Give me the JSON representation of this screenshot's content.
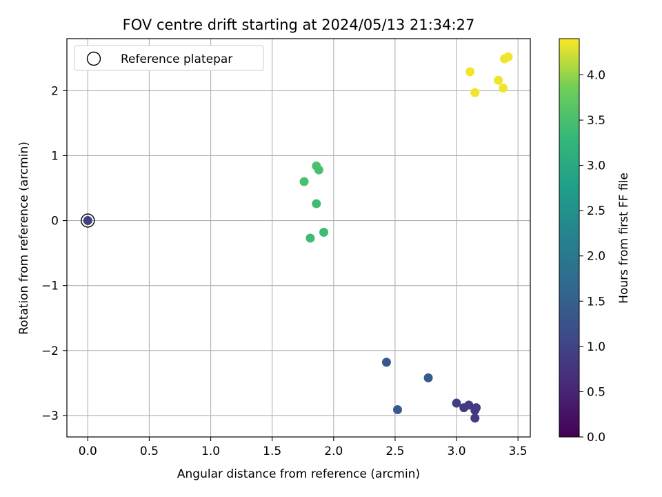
{
  "chart_data": {
    "type": "scatter",
    "title": "FOV centre drift starting at 2024/05/13 21:34:27",
    "xlabel": "Angular distance from reference (arcmin)",
    "ylabel": "Rotation from reference (arcmin)",
    "xlim": [
      -0.17,
      3.6
    ],
    "ylim": [
      -3.33,
      2.8
    ],
    "x_ticks": [
      0.0,
      0.5,
      1.0,
      1.5,
      2.0,
      2.5,
      3.0,
      3.5
    ],
    "x_tick_labels": [
      "0.0",
      "0.5",
      "1.0",
      "1.5",
      "2.0",
      "2.5",
      "3.0",
      "3.5"
    ],
    "y_ticks": [
      -3,
      -2,
      -1,
      0,
      1,
      2
    ],
    "y_tick_labels": [
      "−3",
      "−2",
      "−1",
      "0",
      "1",
      "2"
    ],
    "grid": true,
    "legend": {
      "placement": "top-left",
      "entries": [
        {
          "label": "Reference platepar",
          "marker": "open-circle"
        }
      ]
    },
    "colorbar": {
      "label": "Hours from first FF file",
      "range": [
        0.0,
        4.4
      ],
      "colormap": "viridis",
      "ticks": [
        0.0,
        0.5,
        1.0,
        1.5,
        2.0,
        2.5,
        3.0,
        3.5,
        4.0
      ],
      "tick_labels": [
        "0.0",
        "0.5",
        "1.0",
        "1.5",
        "2.0",
        "2.5",
        "3.0",
        "3.5",
        "4.0"
      ]
    },
    "reference_point": {
      "x": 0.0,
      "y": 0.0
    },
    "points": [
      {
        "x": 0.0,
        "y": 0.0,
        "hours": 0.9
      },
      {
        "x": 3.15,
        "y": -3.04,
        "hours": 0.85
      },
      {
        "x": 3.16,
        "y": -2.88,
        "hours": 0.85
      },
      {
        "x": 3.15,
        "y": -2.92,
        "hours": 0.85
      },
      {
        "x": 3.1,
        "y": -2.84,
        "hours": 0.85
      },
      {
        "x": 3.06,
        "y": -2.88,
        "hours": 0.85
      },
      {
        "x": 3.0,
        "y": -2.81,
        "hours": 0.9
      },
      {
        "x": 2.52,
        "y": -2.91,
        "hours": 1.4
      },
      {
        "x": 2.43,
        "y": -2.18,
        "hours": 1.4
      },
      {
        "x": 2.77,
        "y": -2.42,
        "hours": 1.4
      },
      {
        "x": 1.81,
        "y": -0.27,
        "hours": 3.4
      },
      {
        "x": 1.92,
        "y": -0.18,
        "hours": 3.4
      },
      {
        "x": 1.86,
        "y": 0.26,
        "hours": 3.4
      },
      {
        "x": 1.76,
        "y": 0.6,
        "hours": 3.5
      },
      {
        "x": 1.86,
        "y": 0.84,
        "hours": 3.5
      },
      {
        "x": 1.88,
        "y": 0.78,
        "hours": 3.5
      },
      {
        "x": 3.11,
        "y": 2.29,
        "hours": 4.35
      },
      {
        "x": 3.15,
        "y": 1.97,
        "hours": 4.35
      },
      {
        "x": 3.34,
        "y": 2.16,
        "hours": 4.35
      },
      {
        "x": 3.38,
        "y": 2.04,
        "hours": 4.35
      },
      {
        "x": 3.39,
        "y": 2.49,
        "hours": 4.35
      },
      {
        "x": 3.42,
        "y": 2.52,
        "hours": 4.35
      }
    ]
  }
}
